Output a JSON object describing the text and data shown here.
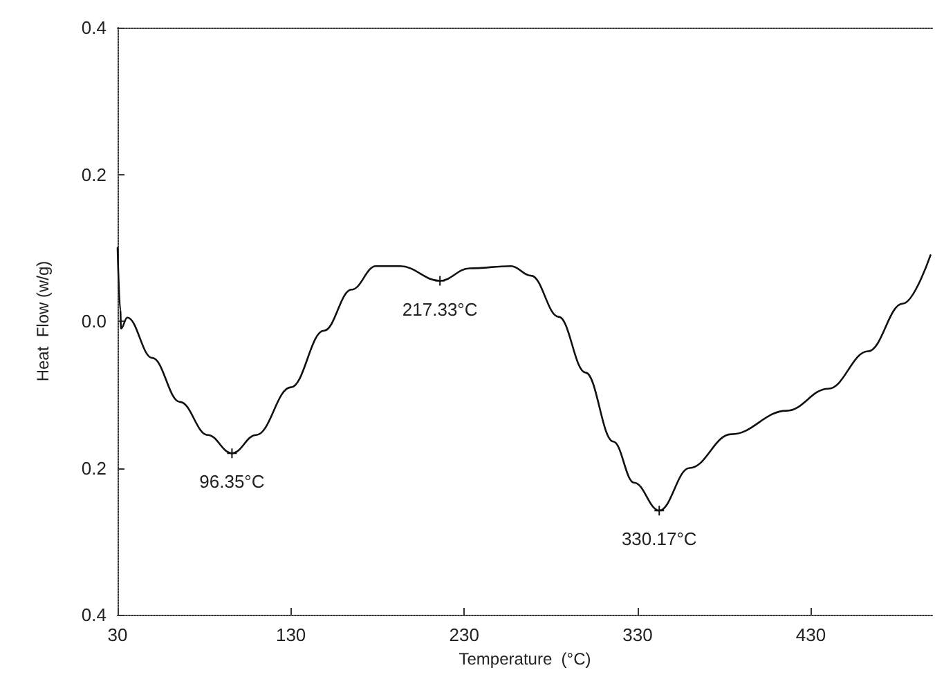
{
  "chart_data": {
    "type": "line",
    "xlabel": "Temperature  (°C)",
    "ylabel": "Heat  Flow (w/g)",
    "xlim": [
      30,
      500
    ],
    "xticks": [
      30,
      130,
      230,
      330,
      430
    ],
    "ylim": [
      -0.4,
      0.4
    ],
    "yticks": [
      {
        "value": -0.4,
        "label": "0.4"
      },
      {
        "value": -0.2,
        "label": "0.2"
      },
      {
        "value": 0,
        "label": "0.0"
      },
      0.2,
      0.4
    ],
    "grid": false,
    "marker": "none",
    "line_style": "solid",
    "series": [
      {
        "color": "#111111",
        "x": [
          30,
          31.6,
          32,
          35.6,
          50,
          66,
          82,
          96,
          110,
          130,
          149,
          165,
          179,
          193,
          216,
          233,
          257,
          268.6,
          284.5,
          300,
          316,
          328,
          342.5,
          360,
          384,
          416,
          440,
          463,
          483,
          499
        ],
        "values": [
          0.1,
          0.015,
          -0.01,
          0.005,
          -0.05,
          -0.11,
          -0.155,
          -0.18,
          -0.155,
          -0.09,
          -0.013,
          0.043,
          0.075,
          0.075,
          0.055,
          0.072,
          0.075,
          0.062,
          0.006,
          -0.07,
          -0.164,
          -0.22,
          -0.258,
          -0.2,
          -0.154,
          -0.122,
          -0.092,
          -0.041,
          0.024,
          0.09
        ]
      }
    ],
    "annotations": [
      {
        "text": "96.35°C",
        "x": 96,
        "y": -0.18
      },
      {
        "text": "217.33°C",
        "x": 216,
        "y": 0.055
      },
      {
        "text": "330.17°C",
        "x": 342.5,
        "y": -0.258
      }
    ]
  }
}
